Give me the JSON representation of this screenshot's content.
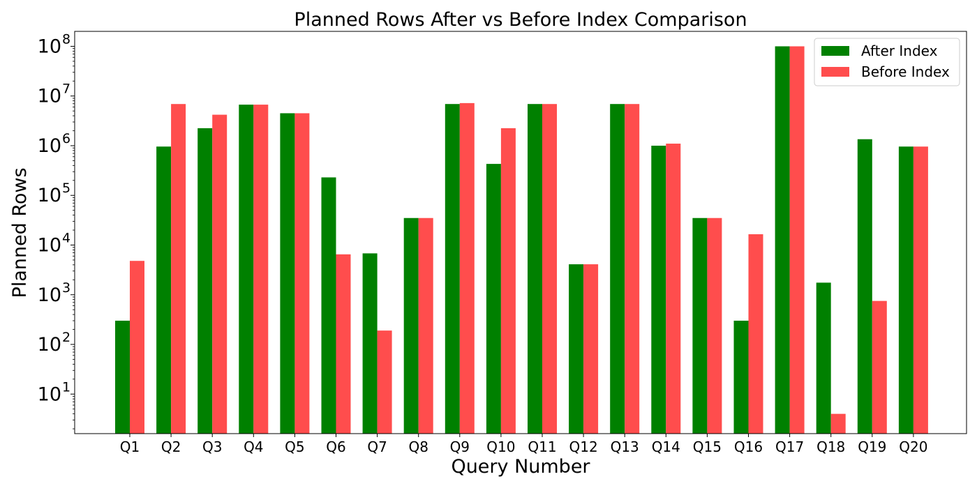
{
  "chart_data": {
    "type": "bar",
    "title": "Planned Rows After vs Before Index Comparison",
    "xlabel": "Query Number",
    "ylabel": "Planned Rows",
    "yscale": "log",
    "ylim": [
      1.6,
      200000000
    ],
    "yticks": [
      {
        "value": 10,
        "base": "10",
        "exp": "1"
      },
      {
        "value": 100,
        "base": "10",
        "exp": "2"
      },
      {
        "value": 1000,
        "base": "10",
        "exp": "3"
      },
      {
        "value": 10000,
        "base": "10",
        "exp": "4"
      },
      {
        "value": 100000,
        "base": "10",
        "exp": "5"
      },
      {
        "value": 1000000,
        "base": "10",
        "exp": "6"
      },
      {
        "value": 10000000,
        "base": "10",
        "exp": "7"
      },
      {
        "value": 100000000,
        "base": "10",
        "exp": "8"
      }
    ],
    "categories": [
      "Q1",
      "Q2",
      "Q3",
      "Q4",
      "Q5",
      "Q6",
      "Q7",
      "Q8",
      "Q9",
      "Q10",
      "Q11",
      "Q12",
      "Q13",
      "Q14",
      "Q15",
      "Q16",
      "Q17",
      "Q18",
      "Q19",
      "Q20"
    ],
    "series": [
      {
        "name": "After Index",
        "color": "#008000",
        "values": [
          300,
          960000,
          2250000,
          6700000,
          4500000,
          230000,
          6800,
          35000,
          6900000,
          430000,
          6900000,
          4100,
          6900000,
          1000000,
          35000,
          300,
          100000000,
          1750,
          1350000,
          960000
        ]
      },
      {
        "name": "Before Index",
        "color": "#ff4d4d",
        "values": [
          4800,
          6900000,
          4200000,
          6700000,
          4500000,
          6500,
          190,
          35000,
          7200000,
          2250000,
          6900000,
          4100,
          6900000,
          1100000,
          35000,
          16500,
          100000000,
          4,
          750,
          960000
        ]
      }
    ],
    "legend": "top-right",
    "grid": false
  }
}
